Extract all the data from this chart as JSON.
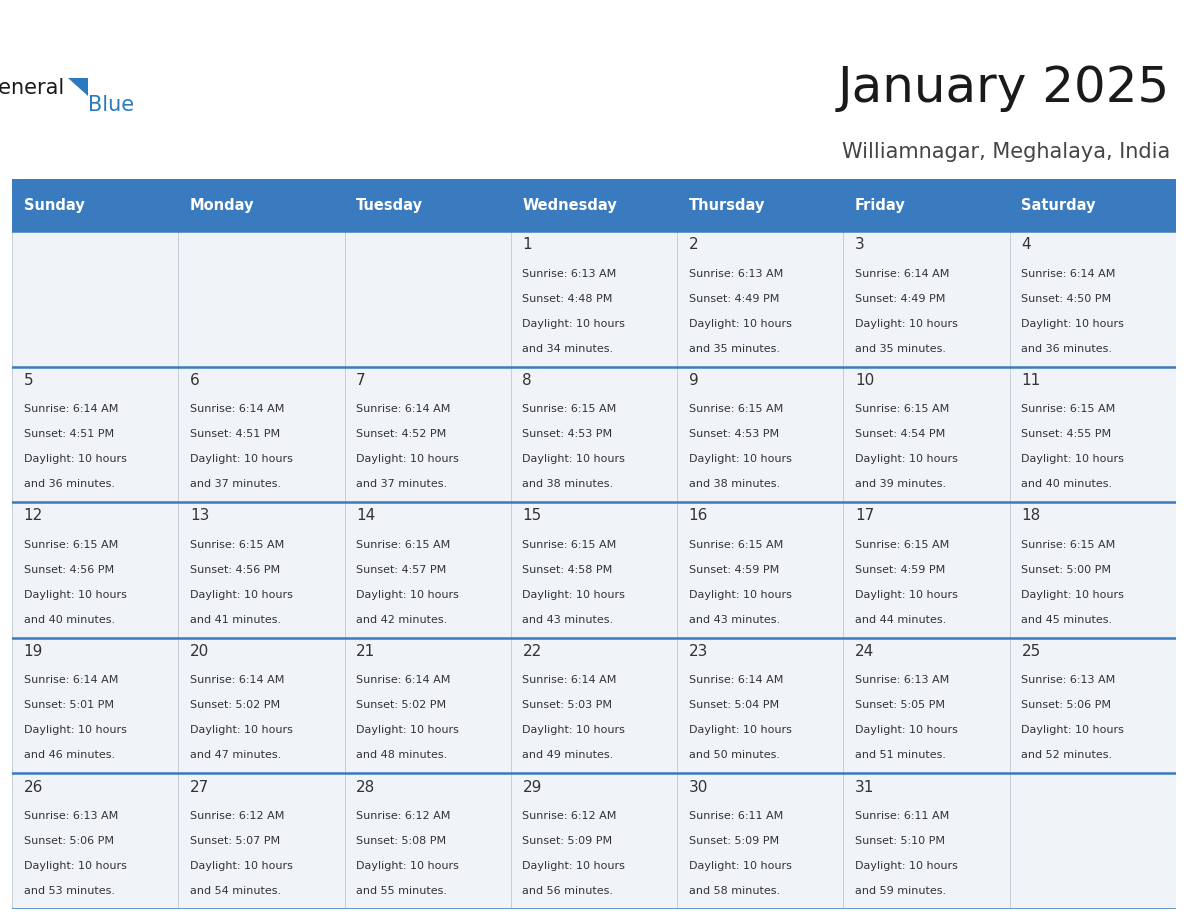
{
  "title": "January 2025",
  "subtitle": "Williamnagar, Meghalaya, India",
  "header_color": "#3a7abf",
  "header_text_color": "#ffffff",
  "cell_bg_color": "#f0f4f8",
  "border_color": "#3a7abf",
  "thin_line_color": "#c0c8d0",
  "day_headers": [
    "Sunday",
    "Monday",
    "Tuesday",
    "Wednesday",
    "Thursday",
    "Friday",
    "Saturday"
  ],
  "title_color": "#1a1a1a",
  "subtitle_color": "#444444",
  "day_num_color": "#333333",
  "info_color": "#333333",
  "logo_general_color": "#1a1a1a",
  "logo_blue_color": "#2b7abf",
  "logo_triangle_color": "#2b7abf",
  "days": [
    {
      "day": 1,
      "col": 3,
      "row": 0,
      "sunrise": "6:13 AM",
      "sunset": "4:48 PM",
      "daylight": "10 hours and 34 minutes."
    },
    {
      "day": 2,
      "col": 4,
      "row": 0,
      "sunrise": "6:13 AM",
      "sunset": "4:49 PM",
      "daylight": "10 hours and 35 minutes."
    },
    {
      "day": 3,
      "col": 5,
      "row": 0,
      "sunrise": "6:14 AM",
      "sunset": "4:49 PM",
      "daylight": "10 hours and 35 minutes."
    },
    {
      "day": 4,
      "col": 6,
      "row": 0,
      "sunrise": "6:14 AM",
      "sunset": "4:50 PM",
      "daylight": "10 hours and 36 minutes."
    },
    {
      "day": 5,
      "col": 0,
      "row": 1,
      "sunrise": "6:14 AM",
      "sunset": "4:51 PM",
      "daylight": "10 hours and 36 minutes."
    },
    {
      "day": 6,
      "col": 1,
      "row": 1,
      "sunrise": "6:14 AM",
      "sunset": "4:51 PM",
      "daylight": "10 hours and 37 minutes."
    },
    {
      "day": 7,
      "col": 2,
      "row": 1,
      "sunrise": "6:14 AM",
      "sunset": "4:52 PM",
      "daylight": "10 hours and 37 minutes."
    },
    {
      "day": 8,
      "col": 3,
      "row": 1,
      "sunrise": "6:15 AM",
      "sunset": "4:53 PM",
      "daylight": "10 hours and 38 minutes."
    },
    {
      "day": 9,
      "col": 4,
      "row": 1,
      "sunrise": "6:15 AM",
      "sunset": "4:53 PM",
      "daylight": "10 hours and 38 minutes."
    },
    {
      "day": 10,
      "col": 5,
      "row": 1,
      "sunrise": "6:15 AM",
      "sunset": "4:54 PM",
      "daylight": "10 hours and 39 minutes."
    },
    {
      "day": 11,
      "col": 6,
      "row": 1,
      "sunrise": "6:15 AM",
      "sunset": "4:55 PM",
      "daylight": "10 hours and 40 minutes."
    },
    {
      "day": 12,
      "col": 0,
      "row": 2,
      "sunrise": "6:15 AM",
      "sunset": "4:56 PM",
      "daylight": "10 hours and 40 minutes."
    },
    {
      "day": 13,
      "col": 1,
      "row": 2,
      "sunrise": "6:15 AM",
      "sunset": "4:56 PM",
      "daylight": "10 hours and 41 minutes."
    },
    {
      "day": 14,
      "col": 2,
      "row": 2,
      "sunrise": "6:15 AM",
      "sunset": "4:57 PM",
      "daylight": "10 hours and 42 minutes."
    },
    {
      "day": 15,
      "col": 3,
      "row": 2,
      "sunrise": "6:15 AM",
      "sunset": "4:58 PM",
      "daylight": "10 hours and 43 minutes."
    },
    {
      "day": 16,
      "col": 4,
      "row": 2,
      "sunrise": "6:15 AM",
      "sunset": "4:59 PM",
      "daylight": "10 hours and 43 minutes."
    },
    {
      "day": 17,
      "col": 5,
      "row": 2,
      "sunrise": "6:15 AM",
      "sunset": "4:59 PM",
      "daylight": "10 hours and 44 minutes."
    },
    {
      "day": 18,
      "col": 6,
      "row": 2,
      "sunrise": "6:15 AM",
      "sunset": "5:00 PM",
      "daylight": "10 hours and 45 minutes."
    },
    {
      "day": 19,
      "col": 0,
      "row": 3,
      "sunrise": "6:14 AM",
      "sunset": "5:01 PM",
      "daylight": "10 hours and 46 minutes."
    },
    {
      "day": 20,
      "col": 1,
      "row": 3,
      "sunrise": "6:14 AM",
      "sunset": "5:02 PM",
      "daylight": "10 hours and 47 minutes."
    },
    {
      "day": 21,
      "col": 2,
      "row": 3,
      "sunrise": "6:14 AM",
      "sunset": "5:02 PM",
      "daylight": "10 hours and 48 minutes."
    },
    {
      "day": 22,
      "col": 3,
      "row": 3,
      "sunrise": "6:14 AM",
      "sunset": "5:03 PM",
      "daylight": "10 hours and 49 minutes."
    },
    {
      "day": 23,
      "col": 4,
      "row": 3,
      "sunrise": "6:14 AM",
      "sunset": "5:04 PM",
      "daylight": "10 hours and 50 minutes."
    },
    {
      "day": 24,
      "col": 5,
      "row": 3,
      "sunrise": "6:13 AM",
      "sunset": "5:05 PM",
      "daylight": "10 hours and 51 minutes."
    },
    {
      "day": 25,
      "col": 6,
      "row": 3,
      "sunrise": "6:13 AM",
      "sunset": "5:06 PM",
      "daylight": "10 hours and 52 minutes."
    },
    {
      "day": 26,
      "col": 0,
      "row": 4,
      "sunrise": "6:13 AM",
      "sunset": "5:06 PM",
      "daylight": "10 hours and 53 minutes."
    },
    {
      "day": 27,
      "col": 1,
      "row": 4,
      "sunrise": "6:12 AM",
      "sunset": "5:07 PM",
      "daylight": "10 hours and 54 minutes."
    },
    {
      "day": 28,
      "col": 2,
      "row": 4,
      "sunrise": "6:12 AM",
      "sunset": "5:08 PM",
      "daylight": "10 hours and 55 minutes."
    },
    {
      "day": 29,
      "col": 3,
      "row": 4,
      "sunrise": "6:12 AM",
      "sunset": "5:09 PM",
      "daylight": "10 hours and 56 minutes."
    },
    {
      "day": 30,
      "col": 4,
      "row": 4,
      "sunrise": "6:11 AM",
      "sunset": "5:09 PM",
      "daylight": "10 hours and 58 minutes."
    },
    {
      "day": 31,
      "col": 5,
      "row": 4,
      "sunrise": "6:11 AM",
      "sunset": "5:10 PM",
      "daylight": "10 hours and 59 minutes."
    }
  ]
}
